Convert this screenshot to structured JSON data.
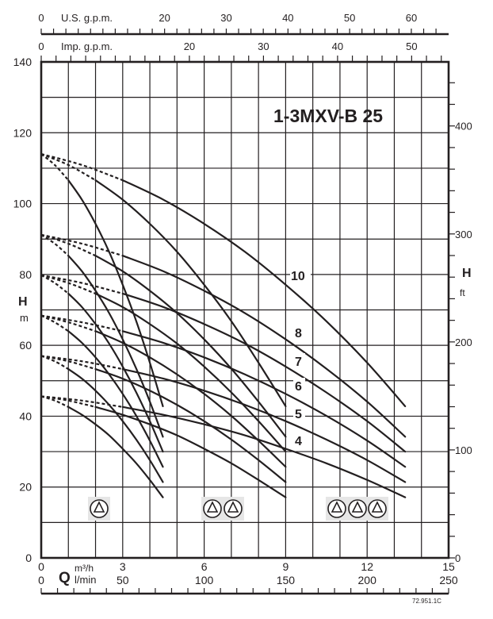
{
  "chart_data": {
    "type": "line",
    "title": "1-3MXV-B 25",
    "ylabel": "H",
    "yunit": "m",
    "ylabel_right": "H",
    "yunit_right": "ft",
    "xlabel": "Q",
    "xunit": "m³/h",
    "xunit_secondary": "l/min",
    "xlim": [
      0,
      15
    ],
    "ylim": [
      0,
      140
    ],
    "x_ticks": [
      "0",
      "3",
      "6",
      "9",
      "12",
      "15"
    ],
    "x_ticks_lmin": [
      "0",
      "50",
      "100",
      "150",
      "200",
      "250"
    ],
    "y_ticks": [
      "0",
      "20",
      "40",
      "60",
      "80",
      "100",
      "120",
      "140"
    ],
    "y_ticks_ft": [
      "0",
      "100",
      "200",
      "300",
      "400"
    ],
    "top_axis_us": {
      "label": "U.S. g.p.m.",
      "ticks": [
        "0",
        "20",
        "30",
        "40",
        "50",
        "60"
      ]
    },
    "top_axis_imp": {
      "label": "Imp. g.p.m.",
      "ticks": [
        "0",
        "20",
        "30",
        "40",
        "50"
      ]
    },
    "grid": true,
    "stage_labels": [
      "10",
      "8",
      "7",
      "6",
      "5",
      "4"
    ],
    "code": "72.951.1C",
    "pumps": [
      {
        "size_icon_count": 1,
        "dashed_until": 1,
        "q": [
          0,
          0.5,
          1,
          1.5,
          2,
          2.5,
          3,
          3.5,
          4,
          4.48
        ],
        "curves": [
          {
            "stage": "10",
            "h": [
              114,
              110.9,
              106.6,
              101.1,
              94.3,
              86.4,
              77.1,
              66.8,
              55.1,
              42.8
            ]
          },
          {
            "stage": "8",
            "h": [
              91.2,
              88.7,
              85.3,
              80.9,
              75.4,
              69.1,
              61.7,
              53.4,
              44.1,
              34.2
            ]
          },
          {
            "stage": "7",
            "h": [
              79.8,
              77.6,
              74.6,
              70.8,
              66.0,
              60.5,
              54.0,
              46.7,
              38.6,
              30.0
            ]
          },
          {
            "stage": "6",
            "h": [
              68.4,
              66.5,
              64.0,
              60.7,
              56.6,
              51.8,
              46.3,
              40.1,
              33.1,
              25.7
            ]
          },
          {
            "stage": "5",
            "h": [
              57.0,
              55.5,
              53.3,
              50.6,
              47.2,
              43.2,
              38.6,
              33.4,
              27.6,
              21.4
            ]
          },
          {
            "stage": "4",
            "h": [
              45.6,
              44.4,
              42.6,
              40.4,
              37.7,
              34.6,
              30.8,
              26.7,
              22.0,
              17.1
            ]
          }
        ]
      },
      {
        "size_icon_count": 2,
        "dashed_until": 2,
        "q": [
          0,
          1,
          2,
          3,
          4,
          5,
          6,
          7,
          8,
          9
        ],
        "curves": [
          {
            "stage": "10",
            "h": [
              114,
              110.9,
              106.6,
              101.1,
              94.3,
              86.4,
              77.1,
              66.8,
              55.1,
              42.8
            ]
          },
          {
            "stage": "8",
            "h": [
              91.2,
              88.7,
              85.3,
              80.9,
              75.4,
              69.1,
              61.7,
              53.4,
              44.1,
              34.2
            ]
          },
          {
            "stage": "7",
            "h": [
              79.8,
              77.6,
              74.6,
              70.8,
              66.0,
              60.5,
              54.0,
              46.7,
              38.6,
              30.0
            ]
          },
          {
            "stage": "6",
            "h": [
              68.4,
              66.5,
              64.0,
              60.7,
              56.6,
              51.8,
              46.3,
              40.1,
              33.1,
              25.7
            ]
          },
          {
            "stage": "5",
            "h": [
              57.0,
              55.5,
              53.3,
              50.6,
              47.2,
              43.2,
              38.6,
              33.4,
              27.6,
              21.4
            ]
          },
          {
            "stage": "4",
            "h": [
              45.6,
              44.4,
              42.6,
              40.4,
              37.7,
              34.6,
              30.8,
              26.7,
              22.0,
              17.1
            ]
          }
        ]
      },
      {
        "size_icon_count": 3,
        "dashed_until": 3,
        "q": [
          0,
          1.5,
          3,
          4.5,
          6,
          7.5,
          9,
          10.5,
          12,
          13.4
        ],
        "curves": [
          {
            "stage": "10",
            "h": [
              114,
              110.9,
              106.6,
              101.1,
              94.3,
              86.4,
              77.1,
              66.8,
              55.1,
              42.8
            ]
          },
          {
            "stage": "8",
            "h": [
              91.2,
              88.7,
              85.3,
              80.9,
              75.4,
              69.1,
              61.7,
              53.4,
              44.1,
              34.2
            ]
          },
          {
            "stage": "7",
            "h": [
              79.8,
              77.6,
              74.6,
              70.8,
              66.0,
              60.5,
              54.0,
              46.7,
              38.6,
              30.0
            ]
          },
          {
            "stage": "6",
            "h": [
              68.4,
              66.5,
              64.0,
              60.7,
              56.6,
              51.8,
              46.3,
              40.1,
              33.1,
              25.7
            ]
          },
          {
            "stage": "5",
            "h": [
              57.0,
              55.5,
              53.3,
              50.6,
              47.2,
              43.2,
              38.6,
              33.4,
              27.6,
              21.4
            ]
          },
          {
            "stage": "4",
            "h": [
              45.6,
              44.4,
              42.6,
              40.4,
              37.7,
              34.6,
              30.8,
              26.7,
              22.0,
              17.1
            ]
          }
        ]
      }
    ]
  }
}
